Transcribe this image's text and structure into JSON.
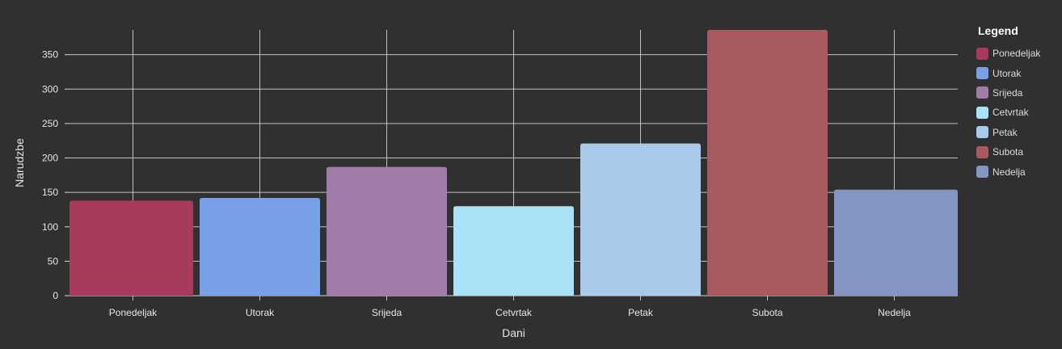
{
  "chart_data": {
    "type": "bar",
    "categories": [
      "Ponedeljak",
      "Utorak",
      "Srijeda",
      "Cetvrtak",
      "Petak",
      "Subota",
      "Nedelja"
    ],
    "values": [
      138,
      142,
      187,
      130,
      221,
      386,
      154
    ],
    "colors": [
      "#a83a5c",
      "#78a0e6",
      "#a27ca8",
      "#a9e2f6",
      "#a8cbec",
      "#a85a60",
      "#8595c1"
    ],
    "xlabel": "Dani",
    "ylabel": "Narudzbe",
    "ylim": [
      0,
      386
    ],
    "yticks": [
      0,
      50,
      100,
      150,
      200,
      250,
      300,
      350
    ],
    "grid": true,
    "legend": {
      "title": "Legend",
      "placement": "right"
    }
  }
}
